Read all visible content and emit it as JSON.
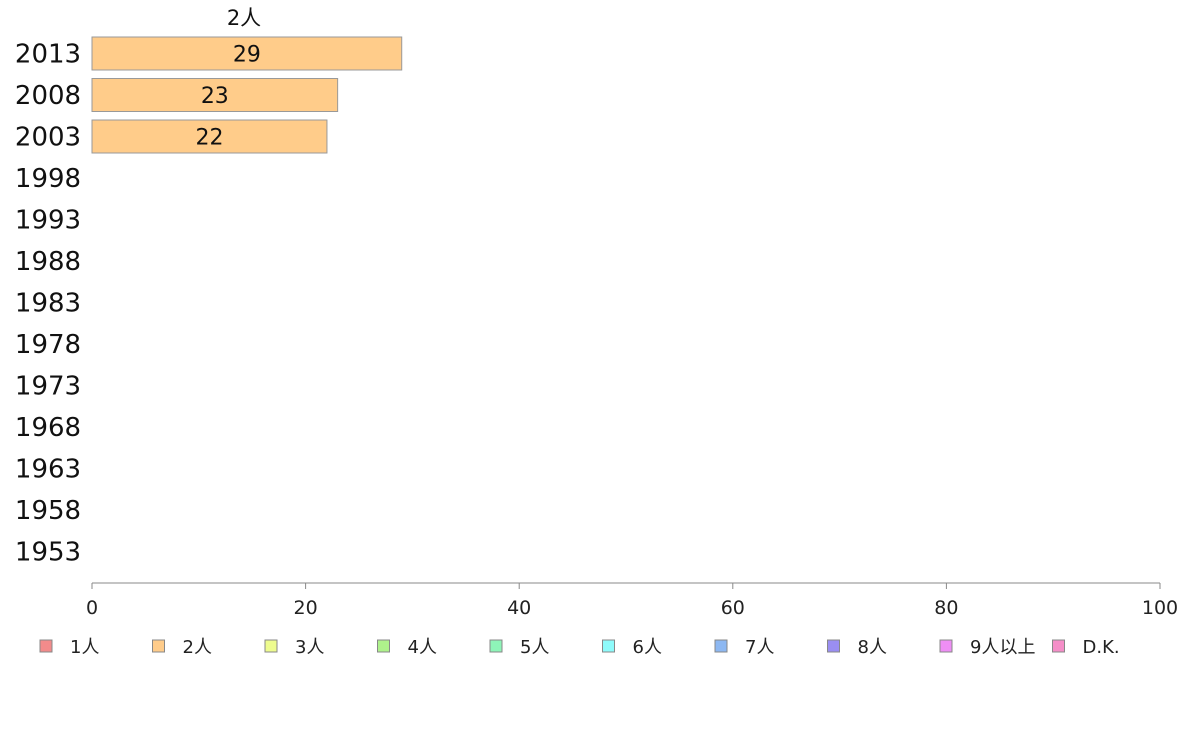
{
  "chart_data": {
    "type": "bar",
    "orientation": "horizontal",
    "stacked": true,
    "categories": [
      "2013",
      "2008",
      "2003",
      "1998",
      "1993",
      "1988",
      "1983",
      "1978",
      "1973",
      "1968",
      "1963",
      "1958",
      "1953"
    ],
    "series": [
      {
        "name": "1人",
        "color": "#f28b8b",
        "values": [
          null,
          null,
          null,
          null,
          null,
          null,
          null,
          null,
          null,
          null,
          null,
          null,
          null
        ]
      },
      {
        "name": "2人",
        "color": "#ffcc8a",
        "values": [
          29,
          23,
          22,
          null,
          null,
          null,
          null,
          null,
          null,
          null,
          null,
          null,
          null
        ]
      },
      {
        "name": "3人",
        "color": "#eefc8e",
        "values": [
          null,
          null,
          null,
          null,
          null,
          null,
          null,
          null,
          null,
          null,
          null,
          null,
          null
        ]
      },
      {
        "name": "4人",
        "color": "#aef28b",
        "values": [
          null,
          null,
          null,
          null,
          null,
          null,
          null,
          null,
          null,
          null,
          null,
          null,
          null
        ]
      },
      {
        "name": "5人",
        "color": "#8ef5b8",
        "values": [
          null,
          null,
          null,
          null,
          null,
          null,
          null,
          null,
          null,
          null,
          null,
          null,
          null
        ]
      },
      {
        "name": "6人",
        "color": "#8efbfb",
        "values": [
          null,
          null,
          null,
          null,
          null,
          null,
          null,
          null,
          null,
          null,
          null,
          null,
          null
        ]
      },
      {
        "name": "7人",
        "color": "#8db8f2",
        "values": [
          null,
          null,
          null,
          null,
          null,
          null,
          null,
          null,
          null,
          null,
          null,
          null,
          null
        ]
      },
      {
        "name": "8人",
        "color": "#9a8ef2",
        "values": [
          null,
          null,
          null,
          null,
          null,
          null,
          null,
          null,
          null,
          null,
          null,
          null,
          null
        ]
      },
      {
        "name": "9人以上",
        "color": "#ee8ef5",
        "values": [
          null,
          null,
          null,
          null,
          null,
          null,
          null,
          null,
          null,
          null,
          null,
          null,
          null
        ]
      },
      {
        "name": "D.K.",
        "color": "#f58ec8",
        "values": [
          null,
          null,
          null,
          null,
          null,
          null,
          null,
          null,
          null,
          null,
          null,
          null,
          null
        ]
      }
    ],
    "header_label": "2人",
    "xlim": [
      0,
      100
    ],
    "xticks": [
      0,
      20,
      40,
      60,
      80,
      100
    ],
    "grid": false,
    "legend_position": "bottom"
  }
}
